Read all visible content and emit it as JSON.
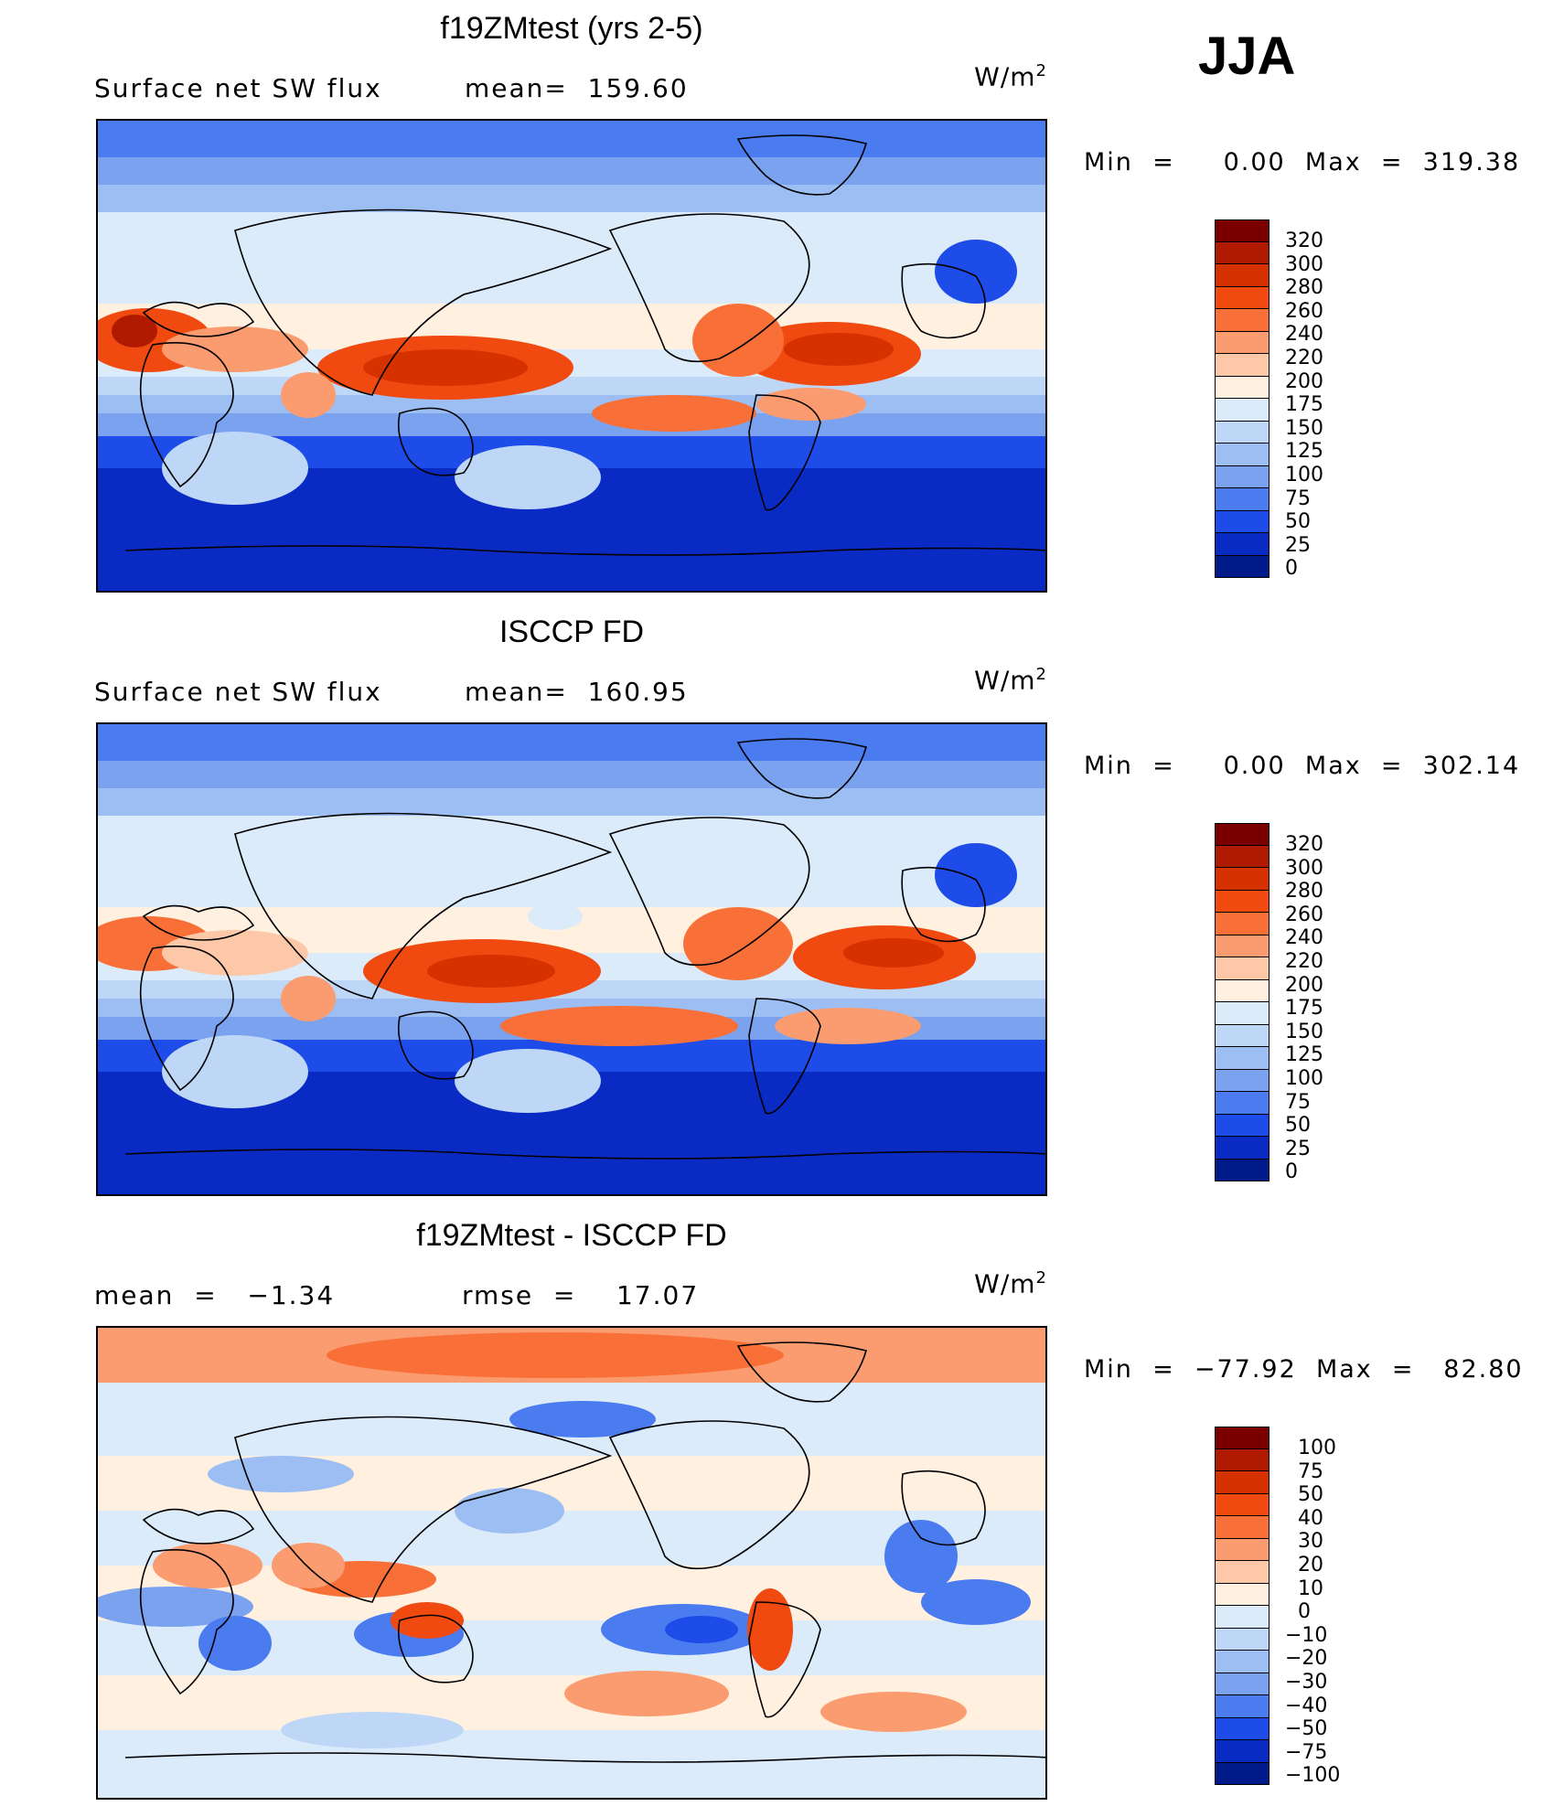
{
  "season": "JJA",
  "panels": [
    {
      "title": "f19ZMtest (yrs 2-5)",
      "left_stat": "Surface net SW flux",
      "right_stat": "mean=  159.60",
      "units_base": "W/m",
      "units_sup": "2",
      "minmax": "Min  =     0.00  Max  =  319.38",
      "kind": "model"
    },
    {
      "title": "ISCCP FD",
      "left_stat": "Surface net SW flux",
      "right_stat": "mean=  160.95",
      "units_base": "W/m",
      "units_sup": "2",
      "minmax": "Min  =     0.00  Max  =  302.14",
      "kind": "obs"
    },
    {
      "title": "f19ZMtest - ISCCP FD",
      "left_stat": "mean  =   −1.34",
      "right_stat": "rmse  =    17.07",
      "units_base": "W/m",
      "units_sup": "2",
      "minmax": "Min  =  −77.92  Max  =   82.80",
      "kind": "diff"
    }
  ],
  "chart_data": [
    {
      "type": "heatmap",
      "title": "f19ZMtest (yrs 2-5)",
      "subtitle": "Surface net SW flux",
      "units": "W/m2",
      "mean": 159.6,
      "min": 0.0,
      "max": 319.38,
      "colorbar_levels": [
        "320",
        "300",
        "280",
        "260",
        "240",
        "220",
        "200",
        "175",
        "150",
        "125",
        "100",
        "75",
        "50",
        "25",
        "0"
      ],
      "colorbar_colors": [
        "#7a0000",
        "#b01a00",
        "#d63200",
        "#f04a10",
        "#f87038",
        "#fb9c70",
        "#fdc8a8",
        "#fff0e0",
        "#dcebfa",
        "#bed7f6",
        "#9cbef2",
        "#7aa2ee",
        "#4a7cf0",
        "#1e4ce8",
        "#0a2ac4",
        "#001a8a"
      ],
      "legend": "right"
    },
    {
      "type": "heatmap",
      "title": "ISCCP FD",
      "subtitle": "Surface net SW flux",
      "units": "W/m2",
      "mean": 160.95,
      "min": 0.0,
      "max": 302.14,
      "colorbar_levels": [
        "320",
        "300",
        "280",
        "260",
        "240",
        "220",
        "200",
        "175",
        "150",
        "125",
        "100",
        "75",
        "50",
        "25",
        "0"
      ],
      "colorbar_colors": [
        "#7a0000",
        "#b01a00",
        "#d63200",
        "#f04a10",
        "#f87038",
        "#fb9c70",
        "#fdc8a8",
        "#fff0e0",
        "#dcebfa",
        "#bed7f6",
        "#9cbef2",
        "#7aa2ee",
        "#4a7cf0",
        "#1e4ce8",
        "#0a2ac4",
        "#001a8a"
      ],
      "legend": "right"
    },
    {
      "type": "heatmap",
      "title": "f19ZMtest - ISCCP FD",
      "units": "W/m2",
      "mean": -1.34,
      "rmse": 17.07,
      "min": -77.92,
      "max": 82.8,
      "colorbar_levels": [
        "100",
        "75",
        "50",
        "40",
        "30",
        "20",
        "10",
        "0",
        "−10",
        "−20",
        "−30",
        "−40",
        "−50",
        "−75",
        "−100"
      ],
      "colorbar_colors": [
        "#7a0000",
        "#b01a00",
        "#d63200",
        "#f04a10",
        "#f87038",
        "#fb9c70",
        "#fdc8a8",
        "#fff0e0",
        "#dcebfa",
        "#bed7f6",
        "#9cbef2",
        "#7aa2ee",
        "#4a7cf0",
        "#1e4ce8",
        "#0a2ac4",
        "#001a8a"
      ],
      "legend": "right"
    }
  ]
}
